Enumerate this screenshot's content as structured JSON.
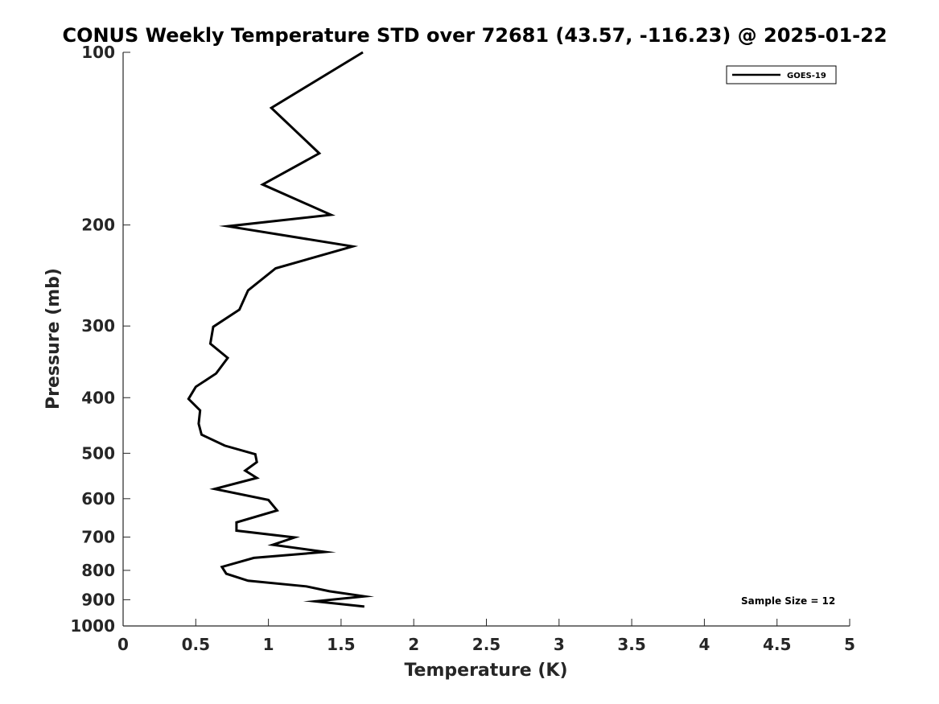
{
  "chart_data": {
    "type": "line",
    "title": "CONUS Weekly Temperature STD over 72681 (43.57, -116.23) @ 2025-01-22",
    "xlabel": "Temperature (K)",
    "ylabel": "Pressure (mb)",
    "xlim": [
      0,
      5
    ],
    "ylim": [
      100,
      1000
    ],
    "yscale": "log",
    "y_reversed": true,
    "xticks": [
      "0",
      "0.5",
      "1",
      "1.5",
      "2",
      "2.5",
      "3",
      "3.5",
      "4",
      "4.5",
      "5"
    ],
    "yticks": [
      "100",
      "200",
      "300",
      "400",
      "500",
      "600",
      "700",
      "800",
      "900",
      "1000"
    ],
    "grid": false,
    "legend_position": "top-right",
    "series": [
      {
        "name": "GOES-19",
        "color": "#000000",
        "x": [
          1.65,
          1.02,
          1.35,
          0.96,
          1.43,
          0.72,
          1.58,
          1.05,
          0.86,
          0.8,
          0.62,
          0.6,
          0.72,
          0.64,
          0.5,
          0.45,
          0.53,
          0.52,
          0.54,
          0.7,
          0.91,
          0.92,
          0.84,
          0.92,
          0.63,
          1.0,
          1.06,
          0.78,
          0.78,
          1.18,
          1.03,
          1.39,
          0.9,
          0.68,
          0.71,
          0.86,
          1.26,
          1.42,
          1.66,
          1.32,
          1.66
        ],
        "y": [
          100,
          125,
          150,
          170,
          192,
          201,
          218,
          238,
          260,
          281,
          301,
          322,
          341,
          363,
          383,
          402,
          421,
          444,
          464,
          485,
          502,
          518,
          536,
          552,
          577,
          603,
          629,
          660,
          682,
          701,
          722,
          743,
          761,
          789,
          811,
          834,
          853,
          870,
          888,
          906,
          925
        ]
      }
    ],
    "annotation": "Sample Size = 12"
  }
}
